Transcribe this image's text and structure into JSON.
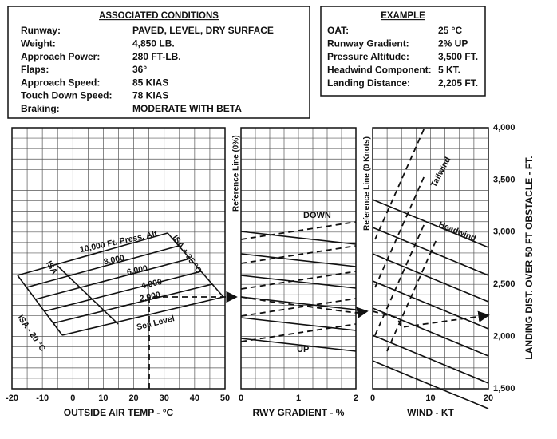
{
  "conditions": {
    "title": "ASSOCIATED CONDITIONS",
    "rows": [
      [
        "Runway:",
        "PAVED, LEVEL, DRY SURFACE"
      ],
      [
        "Weight:",
        "4,850 LB."
      ],
      [
        "Approach Power:",
        "280 FT-LB."
      ],
      [
        "Flaps:",
        "36°"
      ],
      [
        "Approach Speed:",
        "85 KIAS"
      ],
      [
        "Touch Down Speed:",
        "78 KIAS"
      ],
      [
        "Braking:",
        "MODERATE WITH BETA"
      ]
    ]
  },
  "example": {
    "title": "EXAMPLE",
    "rows": [
      [
        "OAT:",
        "25 °C"
      ],
      [
        "Runway Gradient:",
        "2% UP"
      ],
      [
        "Pressure Altitude:",
        "3,500 FT."
      ],
      [
        "Headwind Component:",
        "5 KT."
      ],
      [
        "Landing Distance:",
        "2,205 FT."
      ]
    ]
  },
  "panels": [
    {
      "title": "OUTSIDE AIR TEMP - °C",
      "ticks": [
        "-20",
        "-10",
        "0",
        "10",
        "20",
        "30",
        "40",
        "50"
      ]
    },
    {
      "title": "RWY GRADIENT - %",
      "ticks": [
        "0",
        "1",
        "2"
      ]
    },
    {
      "title": "WIND - KT",
      "ticks": [
        "0",
        "10",
        "20"
      ]
    }
  ],
  "y_axis": {
    "title": "LANDING DIST. OVER 50 FT OBSTACLE - FT.",
    "ticks": [
      "1,500",
      "2,000",
      "2,500",
      "3,000",
      "3,500",
      "4,000"
    ]
  },
  "labels": {
    "altitudes": [
      "Sea Level",
      "2,000",
      "4,000",
      "6,000",
      "8,000",
      "10,000 Ft. Press. Alt."
    ],
    "isa": "ISA",
    "isa_hot": "ISA + 35 °C",
    "isa_cold": "ISA - 20 °C",
    "down": "DOWN",
    "up": "UP",
    "ref_gradient": "Reference Line (0%)",
    "ref_wind": "Reference Line (0 Knots)",
    "tailwind": "Tailwind",
    "headwind": "Headwind"
  }
}
